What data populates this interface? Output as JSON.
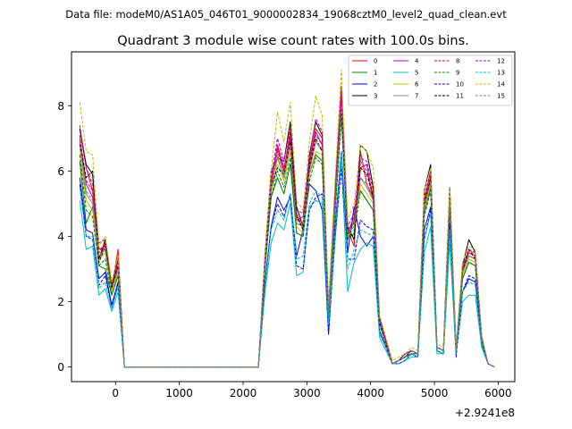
{
  "suptitle": "Data file: modeM0/AS1A05_046T01_9000002834_19068cztM0_level2_quad_clean.evt",
  "chart_data": {
    "type": "line",
    "title": "Quadrant 3 module wise count rates with 100.0s bins.",
    "xlabel": "",
    "ylabel": "",
    "x_offset_label": "+2.9241e8",
    "xlim": [
      -690,
      6260
    ],
    "ylim": [
      -0.45,
      9.65
    ],
    "xticks": [
      0,
      1000,
      2000,
      3000,
      4000,
      5000,
      6000
    ],
    "yticks": [
      0,
      2,
      4,
      6,
      8
    ],
    "grid": false,
    "legend_location": "top-right",
    "x": [
      -560,
      -460,
      -360,
      -260,
      -160,
      -60,
      40,
      140,
      240,
      340,
      440,
      540,
      640,
      740,
      840,
      940,
      1040,
      1140,
      1240,
      1340,
      1440,
      1540,
      1640,
      1740,
      1840,
      1940,
      2040,
      2140,
      2240,
      2340,
      2440,
      2540,
      2640,
      2740,
      2840,
      2940,
      3040,
      3140,
      3240,
      3340,
      3440,
      3540,
      3640,
      3740,
      3840,
      3940,
      4040,
      4140,
      4240,
      4340,
      4440,
      4540,
      4640,
      4740,
      4840,
      4940,
      5040,
      5140,
      5240,
      5340,
      5440,
      5540,
      5640,
      5740,
      5840,
      5940
    ],
    "series": [
      {
        "name": "0",
        "color": "#ff0000",
        "dashed": false,
        "values": [
          7.3,
          6.1,
          5.4,
          3.3,
          3.8,
          2.4,
          3.6,
          0,
          0,
          0,
          0,
          0,
          0,
          0,
          0,
          0,
          0,
          0,
          0,
          0,
          0,
          0,
          0,
          0,
          0,
          0,
          0,
          0,
          0,
          3.2,
          5.7,
          6.7,
          6.0,
          7.2,
          4.7,
          4.2,
          6.3,
          7.3,
          7.0,
          1.7,
          5.2,
          8.5,
          4.2,
          3.7,
          6.6,
          5.6,
          5.2,
          1.4,
          0.8,
          0.1,
          0.2,
          0.3,
          0.5,
          0.4,
          5.1,
          6.0,
          0.6,
          0.5,
          5.3,
          0.5,
          3.0,
          3.5,
          3.4,
          0.9,
          0.1,
          0.0
        ]
      },
      {
        "name": "1",
        "color": "#008000",
        "dashed": false,
        "values": [
          6.3,
          4.4,
          4.9,
          3.1,
          3.0,
          2.2,
          2.8,
          0,
          0,
          0,
          0,
          0,
          0,
          0,
          0,
          0,
          0,
          0,
          0,
          0,
          0,
          0,
          0,
          0,
          0,
          0,
          0,
          0,
          0,
          2.9,
          5.2,
          5.8,
          5.3,
          6.2,
          4.1,
          4.0,
          5.9,
          6.5,
          6.3,
          1.6,
          4.7,
          7.8,
          3.9,
          4.5,
          5.4,
          5.1,
          4.8,
          1.3,
          0.7,
          0.1,
          0.2,
          0.3,
          0.4,
          0.4,
          4.7,
          5.5,
          0.6,
          0.5,
          4.9,
          0.5,
          2.7,
          3.2,
          3.1,
          0.8,
          0.1,
          0.0
        ]
      },
      {
        "name": "2",
        "color": "#0000ff",
        "dashed": false,
        "values": [
          5.8,
          4.2,
          4.1,
          2.7,
          2.9,
          1.9,
          2.6,
          0,
          0,
          0,
          0,
          0,
          0,
          0,
          0,
          0,
          0,
          0,
          0,
          0,
          0,
          0,
          0,
          0,
          0,
          0,
          0,
          0,
          0,
          2.5,
          4.3,
          5.2,
          4.8,
          5.2,
          3.4,
          4.2,
          5.6,
          5.4,
          4.8,
          1.0,
          4.2,
          6.6,
          3.5,
          4.9,
          4.0,
          3.7,
          4.0,
          1.1,
          0.6,
          0.1,
          0.2,
          0.3,
          0.4,
          0.3,
          4.2,
          4.9,
          0.5,
          0.4,
          4.3,
          0.4,
          2.3,
          2.7,
          2.6,
          0.7,
          0.1,
          0.0
        ]
      },
      {
        "name": "3",
        "color": "#000000",
        "dashed": false,
        "values": [
          7.3,
          6.2,
          5.9,
          3.3,
          3.9,
          2.5,
          3.3,
          0,
          0,
          0,
          0,
          0,
          0,
          0,
          0,
          0,
          0,
          0,
          0,
          0,
          0,
          0,
          0,
          0,
          0,
          0,
          0,
          0,
          0,
          3.3,
          6.0,
          6.4,
          6.3,
          7.5,
          4.9,
          4.3,
          6.5,
          7.5,
          7.1,
          1.8,
          5.3,
          8.3,
          4.3,
          3.9,
          6.8,
          6.6,
          5.5,
          1.5,
          0.8,
          0.1,
          0.2,
          0.4,
          0.5,
          0.4,
          5.4,
          6.2,
          0.6,
          0.5,
          5.5,
          0.5,
          3.1,
          3.9,
          3.5,
          0.9,
          0.1,
          0.0
        ]
      },
      {
        "name": "4",
        "color": "#bf00bf",
        "dashed": false,
        "values": [
          7.0,
          5.6,
          5.2,
          3.6,
          3.7,
          2.4,
          3.1,
          0,
          0,
          0,
          0,
          0,
          0,
          0,
          0,
          0,
          0,
          0,
          0,
          0,
          0,
          0,
          0,
          0,
          0,
          0,
          0,
          0,
          0,
          3.1,
          5.6,
          6.8,
          6.1,
          7.0,
          4.5,
          4.6,
          6.2,
          7.2,
          6.8,
          1.7,
          5.0,
          8.2,
          4.1,
          4.6,
          6.1,
          6.2,
          5.1,
          1.4,
          0.8,
          0.1,
          0.2,
          0.3,
          0.5,
          0.4,
          5.0,
          5.8,
          0.6,
          0.5,
          5.1,
          0.5,
          2.9,
          3.4,
          3.3,
          0.9,
          0.1,
          0.0
        ]
      },
      {
        "name": "5",
        "color": "#00bfbf",
        "dashed": false,
        "values": [
          5.1,
          3.6,
          3.7,
          2.2,
          2.4,
          1.7,
          2.3,
          0,
          0,
          0,
          0,
          0,
          0,
          0,
          0,
          0,
          0,
          0,
          0,
          0,
          0,
          0,
          0,
          0,
          0,
          0,
          0,
          0,
          0,
          2.2,
          3.8,
          4.4,
          4.2,
          5.0,
          2.8,
          2.9,
          4.9,
          5.1,
          5.0,
          1.2,
          3.8,
          6.4,
          2.3,
          3.2,
          3.6,
          3.8,
          3.7,
          0.9,
          0.5,
          0.1,
          0.1,
          0.2,
          0.3,
          0.3,
          3.5,
          4.3,
          0.4,
          0.4,
          3.8,
          0.4,
          2.0,
          2.2,
          2.2,
          0.6,
          0.1,
          0.0
        ]
      },
      {
        "name": "6",
        "color": "#bfbf00",
        "dashed": false,
        "values": [
          6.7,
          5.1,
          4.8,
          3.3,
          3.5,
          2.3,
          2.9,
          0,
          0,
          0,
          0,
          0,
          0,
          0,
          0,
          0,
          0,
          0,
          0,
          0,
          0,
          0,
          0,
          0,
          0,
          0,
          0,
          0,
          0,
          3.0,
          5.4,
          6.2,
          5.7,
          6.6,
          4.3,
          4.1,
          5.9,
          6.6,
          6.5,
          1.6,
          4.8,
          7.9,
          4.0,
          4.2,
          5.6,
          5.3,
          5.0,
          1.3,
          0.7,
          0.1,
          0.2,
          0.3,
          0.5,
          0.4,
          4.8,
          5.6,
          0.6,
          0.5,
          5.0,
          0.5,
          2.8,
          3.3,
          3.2,
          0.8,
          0.1,
          0.0
        ]
      },
      {
        "name": "7",
        "color": "#808080",
        "dashed": false,
        "values": [
          6.9,
          5.3,
          5.0,
          3.4,
          3.6,
          2.4,
          3.0,
          0,
          0,
          0,
          0,
          0,
          0,
          0,
          0,
          0,
          0,
          0,
          0,
          0,
          0,
          0,
          0,
          0,
          0,
          0,
          0,
          0,
          0,
          3.0,
          5.5,
          6.4,
          5.8,
          6.8,
          4.4,
          4.3,
          6.0,
          6.9,
          6.6,
          1.6,
          4.9,
          8.0,
          4.1,
          4.3,
          5.8,
          5.5,
          5.1,
          1.4,
          0.7,
          0.1,
          0.2,
          0.3,
          0.5,
          0.4,
          4.9,
          5.7,
          0.6,
          0.5,
          5.1,
          0.5,
          2.9,
          3.4,
          3.3,
          0.9,
          0.1,
          0.0
        ]
      },
      {
        "name": "8",
        "color": "#ff0000",
        "dashed": true,
        "values": [
          7.1,
          5.7,
          5.4,
          3.5,
          3.8,
          2.5,
          3.2,
          0,
          0,
          0,
          0,
          0,
          0,
          0,
          0,
          0,
          0,
          0,
          0,
          0,
          0,
          0,
          0,
          0,
          0,
          0,
          0,
          0,
          0,
          3.1,
          5.7,
          6.6,
          6.0,
          7.1,
          4.6,
          4.4,
          6.2,
          7.1,
          6.8,
          1.7,
          5.1,
          8.3,
          4.2,
          4.4,
          6.3,
          6.0,
          5.3,
          1.4,
          0.8,
          0.1,
          0.2,
          0.3,
          0.5,
          0.4,
          5.1,
          5.9,
          0.6,
          0.5,
          5.2,
          0.5,
          3.0,
          3.6,
          3.4,
          0.9,
          0.1,
          0.0
        ]
      },
      {
        "name": "9",
        "color": "#008000",
        "dashed": true,
        "values": [
          6.5,
          4.8,
          4.6,
          3.1,
          3.3,
          2.2,
          2.8,
          0,
          0,
          0,
          0,
          0,
          0,
          0,
          0,
          0,
          0,
          0,
          0,
          0,
          0,
          0,
          0,
          0,
          0,
          0,
          0,
          0,
          0,
          2.9,
          5.2,
          6.0,
          5.5,
          6.4,
          4.1,
          4.0,
          5.7,
          6.4,
          6.2,
          1.5,
          4.6,
          7.6,
          3.9,
          4.1,
          5.4,
          5.1,
          4.8,
          1.3,
          0.7,
          0.1,
          0.2,
          0.3,
          0.4,
          0.4,
          4.6,
          5.4,
          0.6,
          0.5,
          4.8,
          0.5,
          2.7,
          3.2,
          3.1,
          0.8,
          0.1,
          0.0
        ]
      },
      {
        "name": "10",
        "color": "#0000ff",
        "dashed": true,
        "values": [
          5.6,
          4.0,
          3.9,
          2.5,
          2.8,
          1.8,
          2.5,
          0,
          0,
          0,
          0,
          0,
          0,
          0,
          0,
          0,
          0,
          0,
          0,
          0,
          0,
          0,
          0,
          0,
          0,
          0,
          0,
          0,
          0,
          2.5,
          4.3,
          5.0,
          4.6,
          5.3,
          3.1,
          3.0,
          4.8,
          5.2,
          5.3,
          1.0,
          3.9,
          6.1,
          3.3,
          3.3,
          4.5,
          4.3,
          4.2,
          1.1,
          0.6,
          0.1,
          0.1,
          0.2,
          0.4,
          0.3,
          3.9,
          4.8,
          0.5,
          0.4,
          4.4,
          0.3,
          2.3,
          2.8,
          2.7,
          0.7,
          0.1,
          0.0
        ]
      },
      {
        "name": "11",
        "color": "#000000",
        "dashed": true,
        "values": [
          6.8,
          5.8,
          6.0,
          3.2,
          3.7,
          2.4,
          3.1,
          0,
          0,
          0,
          0,
          0,
          0,
          0,
          0,
          0,
          0,
          0,
          0,
          0,
          0,
          0,
          0,
          0,
          0,
          0,
          0,
          0,
          0,
          3.0,
          5.5,
          6.1,
          5.9,
          6.9,
          4.6,
          4.2,
          6.1,
          7.0,
          6.6,
          1.6,
          4.9,
          7.9,
          4.1,
          4.0,
          6.1,
          5.9,
          5.2,
          1.4,
          0.7,
          0.1,
          0.2,
          0.3,
          0.5,
          0.4,
          4.9,
          5.8,
          0.6,
          0.5,
          5.1,
          0.5,
          2.9,
          3.6,
          3.3,
          0.9,
          0.1,
          0.0
        ]
      },
      {
        "name": "12",
        "color": "#bf00bf",
        "dashed": true,
        "values": [
          7.4,
          6.1,
          5.6,
          3.8,
          3.9,
          2.6,
          3.3,
          0,
          0,
          0,
          0,
          0,
          0,
          0,
          0,
          0,
          0,
          0,
          0,
          0,
          0,
          0,
          0,
          0,
          0,
          0,
          0,
          0,
          0,
          3.2,
          5.8,
          7.0,
          6.3,
          7.3,
          4.8,
          4.7,
          6.4,
          7.6,
          7.2,
          1.8,
          5.3,
          8.6,
          4.3,
          4.7,
          6.4,
          6.3,
          5.4,
          1.5,
          0.8,
          0.1,
          0.2,
          0.4,
          0.5,
          0.4,
          5.2,
          6.0,
          0.6,
          0.5,
          5.3,
          0.5,
          3.1,
          3.6,
          3.5,
          0.9,
          0.1,
          0.0
        ]
      },
      {
        "name": "13",
        "color": "#00bfbf",
        "dashed": true,
        "values": [
          5.5,
          4.0,
          4.0,
          2.4,
          2.6,
          1.8,
          2.5,
          0,
          0,
          0,
          0,
          0,
          0,
          0,
          0,
          0,
          0,
          0,
          0,
          0,
          0,
          0,
          0,
          0,
          0,
          0,
          0,
          0,
          0,
          2.4,
          4.2,
          4.8,
          4.5,
          5.3,
          3.3,
          3.4,
          5.0,
          5.4,
          5.2,
          1.3,
          4.0,
          6.6,
          3.0,
          3.6,
          4.2,
          4.1,
          4.0,
          1.0,
          0.6,
          0.1,
          0.1,
          0.2,
          0.4,
          0.3,
          3.9,
          4.7,
          0.5,
          0.4,
          4.2,
          0.4,
          2.3,
          2.6,
          2.5,
          0.7,
          0.1,
          0.0
        ]
      },
      {
        "name": "14",
        "color": "#bfbf00",
        "dashed": true,
        "values": [
          8.1,
          6.6,
          6.5,
          3.7,
          4.0,
          2.6,
          3.4,
          0,
          0,
          0,
          0,
          0,
          0,
          0,
          0,
          0,
          0,
          0,
          0,
          0,
          0,
          0,
          0,
          0,
          0,
          0,
          0,
          0,
          0,
          3.4,
          6.0,
          7.8,
          6.9,
          8.1,
          5.1,
          4.8,
          6.9,
          8.3,
          7.7,
          1.9,
          5.6,
          9.1,
          4.5,
          5.0,
          6.8,
          6.6,
          6.1,
          1.6,
          0.9,
          0.2,
          0.3,
          0.4,
          0.6,
          0.5,
          5.4,
          6.1,
          0.7,
          0.6,
          5.5,
          0.6,
          3.2,
          3.7,
          3.6,
          1.0,
          0.1,
          0.0
        ]
      },
      {
        "name": "15",
        "color": "#808080",
        "dashed": true,
        "values": [
          6.9,
          5.4,
          5.1,
          3.4,
          3.6,
          2.4,
          3.0,
          0,
          0,
          0,
          0,
          0,
          0,
          0,
          0,
          0,
          0,
          0,
          0,
          0,
          0,
          0,
          0,
          0,
          0,
          0,
          0,
          0,
          0,
          3.0,
          5.5,
          6.5,
          5.9,
          6.8,
          4.4,
          4.3,
          6.0,
          6.9,
          6.7,
          1.6,
          4.9,
          8.0,
          4.1,
          4.3,
          5.8,
          5.6,
          5.1,
          1.4,
          0.7,
          0.1,
          0.2,
          0.3,
          0.5,
          0.4,
          4.9,
          5.7,
          0.6,
          0.5,
          5.1,
          0.5,
          2.9,
          3.4,
          3.3,
          0.9,
          0.1,
          0.0
        ]
      }
    ]
  }
}
